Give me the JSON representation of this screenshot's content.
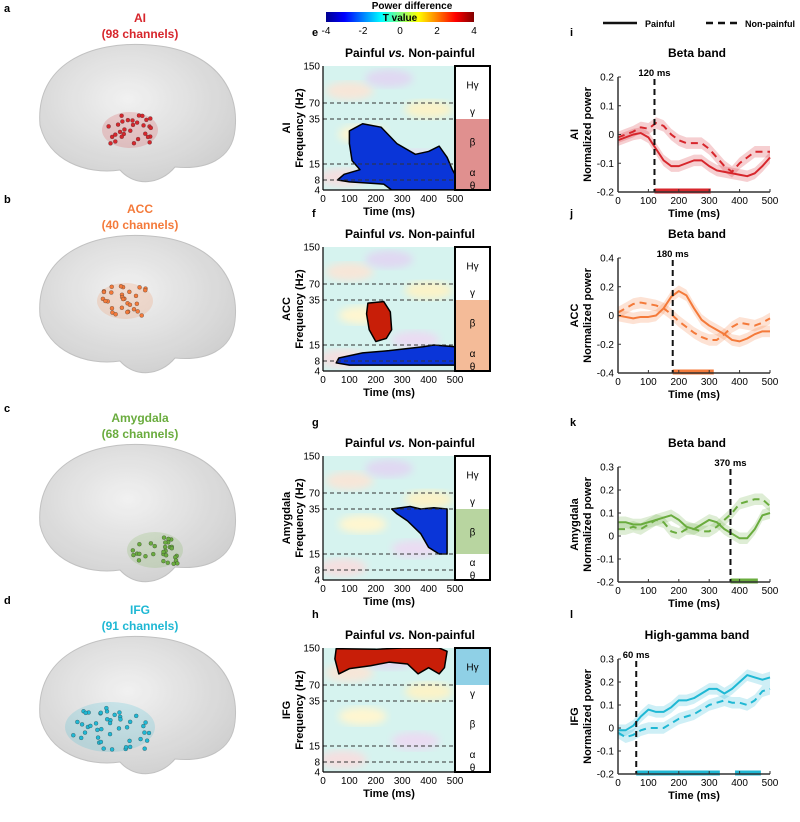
{
  "colorbar": {
    "title": "Power difference",
    "label": "T value",
    "ticks": [
      "-4",
      "-2",
      "0",
      "2",
      "4"
    ],
    "range": [
      -4,
      4
    ]
  },
  "legend": {
    "painful": "Painful",
    "nonpainful": "Non-painful"
  },
  "colors": {
    "AI": "#d7262c",
    "ACC": "#f47a3a",
    "Amygdala": "#6aac3e",
    "IFG": "#1fb8d4"
  },
  "regions": [
    {
      "letter": "a",
      "name": "AI",
      "channels": "(98 channels)",
      "color": "#d7262c"
    },
    {
      "letter": "b",
      "name": "ACC",
      "channels": "(40 channels)",
      "color": "#f47a3a"
    },
    {
      "letter": "c",
      "name": "Amygdala",
      "channels": "(68 channels)",
      "color": "#6aac3e"
    },
    {
      "letter": "d",
      "name": "IFG",
      "channels": "(91 channels)",
      "color": "#1fb8d4"
    }
  ],
  "chart_data": [
    {
      "letter": "e",
      "type": "heatmap",
      "title_a": "Painful ",
      "title_b": "vs.",
      "title_c": " Non-painful",
      "ylabel_region": "AI",
      "ylabel": "Frequency (Hz)",
      "xlabel": "Time (ms)",
      "xticks": [
        "0",
        "100",
        "200",
        "300",
        "400",
        "500"
      ],
      "yticks": [
        "150",
        "70",
        "35",
        "15",
        "8",
        "4"
      ],
      "bands": [
        "Hγ",
        "γ",
        "β",
        "α",
        "θ"
      ],
      "highlight_bands": [
        "β",
        "α",
        "θ"
      ],
      "highlight_color": "#e0908f",
      "clusters": [
        {
          "sign": "negative",
          "points": [
            [
              100,
              28
            ],
            [
              150,
              32
            ],
            [
              220,
              30
            ],
            [
              280,
              22
            ],
            [
              350,
              18
            ],
            [
              400,
              19
            ],
            [
              440,
              21
            ],
            [
              470,
              17
            ],
            [
              490,
              12
            ],
            [
              500,
              10
            ],
            [
              500,
              4
            ],
            [
              260,
              4
            ],
            [
              230,
              6
            ],
            [
              100,
              7
            ],
            [
              55,
              8
            ],
            [
              80,
              10
            ],
            [
              140,
              12
            ],
            [
              110,
              16
            ],
            [
              100,
              22
            ]
          ]
        }
      ]
    },
    {
      "letter": "f",
      "type": "heatmap",
      "title_a": "Painful ",
      "title_b": "vs.",
      "title_c": " Non-painful",
      "ylabel_region": "ACC",
      "ylabel": "Frequency (Hz)",
      "xlabel": "Time (ms)",
      "xticks": [
        "0",
        "100",
        "200",
        "300",
        "400",
        "500"
      ],
      "yticks": [
        "150",
        "70",
        "35",
        "15",
        "8",
        "4"
      ],
      "bands": [
        "Hγ",
        "γ",
        "β",
        "α",
        "θ"
      ],
      "highlight_bands": [
        "β",
        "α",
        "θ"
      ],
      "highlight_color": "#f4bb98",
      "clusters": [
        {
          "sign": "positive",
          "points": [
            [
              170,
              33
            ],
            [
              230,
              34
            ],
            [
              255,
              28
            ],
            [
              260,
              20
            ],
            [
              240,
              17
            ],
            [
              200,
              16
            ],
            [
              175,
              20
            ],
            [
              165,
              27
            ]
          ]
        },
        {
          "sign": "negative",
          "points": [
            [
              60,
              9
            ],
            [
              150,
              11
            ],
            [
              250,
              12
            ],
            [
              380,
              14
            ],
            [
              420,
              15
            ],
            [
              500,
              14
            ],
            [
              500,
              6
            ],
            [
              300,
              6
            ],
            [
              100,
              6
            ],
            [
              50,
              7
            ]
          ]
        }
      ]
    },
    {
      "letter": "g",
      "type": "heatmap",
      "title_a": "Painful ",
      "title_b": "vs.",
      "title_c": " Non-painful",
      "ylabel_region": "Amygdala",
      "ylabel": "Frequency (Hz)",
      "xlabel": "Time (ms)",
      "xticks": [
        "0",
        "100",
        "200",
        "300",
        "400",
        "500"
      ],
      "yticks": [
        "150",
        "70",
        "35",
        "15",
        "8",
        "4"
      ],
      "bands": [
        "Hγ",
        "γ",
        "β",
        "α",
        "θ"
      ],
      "highlight_bands": [
        "β"
      ],
      "highlight_color": "#b8d5a0",
      "clusters": [
        {
          "sign": "negative",
          "points": [
            [
              260,
              35
            ],
            [
              330,
              39
            ],
            [
              370,
              35
            ],
            [
              420,
              37
            ],
            [
              470,
              35
            ],
            [
              470,
              15
            ],
            [
              440,
              15
            ],
            [
              400,
              17
            ],
            [
              370,
              22
            ],
            [
              320,
              28
            ],
            [
              280,
              32
            ]
          ]
        }
      ]
    },
    {
      "letter": "h",
      "type": "heatmap",
      "title_a": "Painful ",
      "title_b": "vs.",
      "title_c": " Non-painful",
      "ylabel_region": "IFG",
      "ylabel": "Frequency (Hz)",
      "xlabel": "Time (ms)",
      "xticks": [
        "0",
        "100",
        "200",
        "300",
        "400",
        "500"
      ],
      "yticks": [
        "150",
        "70",
        "35",
        "15",
        "8",
        "4"
      ],
      "bands": [
        "Hγ",
        "γ",
        "β",
        "α",
        "θ"
      ],
      "highlight_bands": [
        "Hγ"
      ],
      "highlight_color": "#8fd0e6",
      "clusters": [
        {
          "sign": "positive",
          "points": [
            [
              50,
              148
            ],
            [
              200,
              146
            ],
            [
              300,
              150
            ],
            [
              440,
              150
            ],
            [
              470,
              140
            ],
            [
              460,
              100
            ],
            [
              440,
              88
            ],
            [
              400,
              100
            ],
            [
              360,
              88
            ],
            [
              320,
              108
            ],
            [
              250,
              112
            ],
            [
              180,
              104
            ],
            [
              100,
              98
            ],
            [
              60,
              88
            ],
            [
              45,
              120
            ]
          ]
        }
      ]
    },
    {
      "letter": "i",
      "type": "line",
      "title": "Beta band",
      "ylabel_region": "AI",
      "ylabel": "Normalized power",
      "xlabel": "Time (ms)",
      "color": "#d7262c",
      "xlim": [
        0,
        500
      ],
      "ylim": [
        -0.2,
        0.2
      ],
      "xticks": [
        "0",
        "100",
        "200",
        "300",
        "400",
        "500"
      ],
      "yticks": [
        "0.2",
        "0.1",
        "0",
        "-0.1",
        "-0.2"
      ],
      "marker_ms": 120,
      "marker_label": "120 ms",
      "significant": [
        [
          120,
          305
        ]
      ],
      "x": [
        0,
        25,
        50,
        75,
        100,
        125,
        150,
        175,
        200,
        225,
        250,
        275,
        300,
        325,
        350,
        375,
        400,
        425,
        450,
        475,
        500
      ],
      "series": [
        {
          "name": "Painful",
          "values": [
            -0.02,
            -0.01,
            0,
            0.005,
            -0.01,
            -0.05,
            -0.09,
            -0.11,
            -0.11,
            -0.1,
            -0.09,
            -0.09,
            -0.11,
            -0.125,
            -0.13,
            -0.135,
            -0.14,
            -0.145,
            -0.135,
            -0.11,
            -0.08
          ]
        },
        {
          "name": "Non-painful",
          "values": [
            -0.01,
            0,
            0.01,
            0.025,
            0.02,
            0.04,
            0.03,
            0,
            -0.02,
            -0.03,
            -0.03,
            -0.03,
            -0.05,
            -0.08,
            -0.11,
            -0.13,
            -0.1,
            -0.08,
            -0.06,
            -0.06,
            -0.06
          ]
        }
      ]
    },
    {
      "letter": "j",
      "type": "line",
      "title": "Beta band",
      "ylabel_region": "ACC",
      "ylabel": "Normalized power",
      "xlabel": "Time (ms)",
      "color": "#f47a3a",
      "xlim": [
        0,
        500
      ],
      "ylim": [
        -0.4,
        0.4
      ],
      "xticks": [
        "0",
        "100",
        "200",
        "300",
        "400",
        "500"
      ],
      "yticks": [
        "0.4",
        "0.2",
        "0",
        "-0.2",
        "-0.4"
      ],
      "marker_ms": 180,
      "marker_label": "180 ms",
      "significant": [
        [
          180,
          315
        ]
      ],
      "x": [
        0,
        25,
        50,
        75,
        100,
        125,
        150,
        175,
        200,
        225,
        250,
        275,
        300,
        325,
        350,
        375,
        400,
        425,
        450,
        475,
        500
      ],
      "series": [
        {
          "name": "Painful",
          "values": [
            0,
            -0.01,
            -0.02,
            -0.01,
            -0.01,
            0,
            0.05,
            0.13,
            0.17,
            0.14,
            0.05,
            -0.03,
            -0.07,
            -0.1,
            -0.13,
            -0.17,
            -0.18,
            -0.16,
            -0.13,
            -0.11,
            -0.11
          ]
        },
        {
          "name": "Non-painful",
          "values": [
            0.02,
            0.05,
            0.08,
            0.09,
            0.08,
            0.07,
            0.05,
            0.01,
            -0.04,
            -0.08,
            -0.12,
            -0.15,
            -0.17,
            -0.17,
            -0.13,
            -0.08,
            -0.05,
            -0.06,
            -0.07,
            -0.05,
            -0.02
          ]
        }
      ]
    },
    {
      "letter": "k",
      "type": "line",
      "title": "Beta band",
      "ylabel_region": "Amygdala",
      "ylabel": "Normalized power",
      "xlabel": "Time (ms)",
      "color": "#6aac3e",
      "xlim": [
        0,
        500
      ],
      "ylim": [
        -0.2,
        0.3
      ],
      "xticks": [
        "0",
        "100",
        "200",
        "300",
        "400",
        "500"
      ],
      "yticks": [
        "0.3",
        "0.2",
        "0.1",
        "0",
        "-0.1",
        "-0.2"
      ],
      "marker_ms": 370,
      "marker_label": "370 ms",
      "significant": [
        [
          370,
          460
        ]
      ],
      "x": [
        0,
        25,
        50,
        75,
        100,
        125,
        150,
        175,
        200,
        225,
        250,
        275,
        300,
        325,
        350,
        375,
        400,
        425,
        450,
        475,
        500
      ],
      "series": [
        {
          "name": "Painful",
          "values": [
            0.06,
            0.06,
            0.05,
            0.05,
            0.06,
            0.07,
            0.08,
            0.09,
            0.07,
            0.04,
            0.03,
            0.05,
            0.07,
            0.06,
            0.03,
            0.01,
            -0.01,
            -0.01,
            0.03,
            0.09,
            0.1
          ]
        },
        {
          "name": "Non-painful",
          "values": [
            0.03,
            0.03,
            0.04,
            0.03,
            0.05,
            0.07,
            0.06,
            0.02,
            0.01,
            0.03,
            0.03,
            0.02,
            0.02,
            0.04,
            0.07,
            0.1,
            0.14,
            0.15,
            0.16,
            0.16,
            0.13
          ]
        }
      ]
    },
    {
      "letter": "l",
      "type": "line",
      "title": "High-gamma band",
      "ylabel_region": "IFG",
      "ylabel": "Normalized power",
      "xlabel": "Time (ms)",
      "color": "#1fb8d4",
      "xlim": [
        0,
        500
      ],
      "ylim": [
        -0.2,
        0.3
      ],
      "xticks": [
        "0",
        "100",
        "200",
        "300",
        "400",
        "500"
      ],
      "yticks": [
        "0.3",
        "0.2",
        "0.1",
        "0",
        "-0.1",
        "-0.2"
      ],
      "marker_ms": 60,
      "marker_label": "60 ms",
      "significant": [
        [
          60,
          335
        ],
        [
          385,
          470
        ]
      ],
      "x": [
        0,
        25,
        50,
        75,
        100,
        125,
        150,
        175,
        200,
        225,
        250,
        275,
        300,
        325,
        350,
        375,
        400,
        425,
        450,
        475,
        500
      ],
      "series": [
        {
          "name": "Painful",
          "values": [
            -0.01,
            -0.01,
            0.01,
            0.05,
            0.08,
            0.07,
            0.07,
            0.09,
            0.12,
            0.12,
            0.13,
            0.15,
            0.17,
            0.17,
            0.15,
            0.17,
            0.2,
            0.23,
            0.22,
            0.21,
            0.22
          ]
        },
        {
          "name": "Non-painful",
          "values": [
            -0.02,
            -0.04,
            -0.03,
            -0.01,
            0,
            0,
            0,
            0.02,
            0.04,
            0.05,
            0.06,
            0.08,
            0.1,
            0.11,
            0.12,
            0.11,
            0.11,
            0.1,
            0.12,
            0.16,
            0.17
          ]
        }
      ]
    }
  ]
}
